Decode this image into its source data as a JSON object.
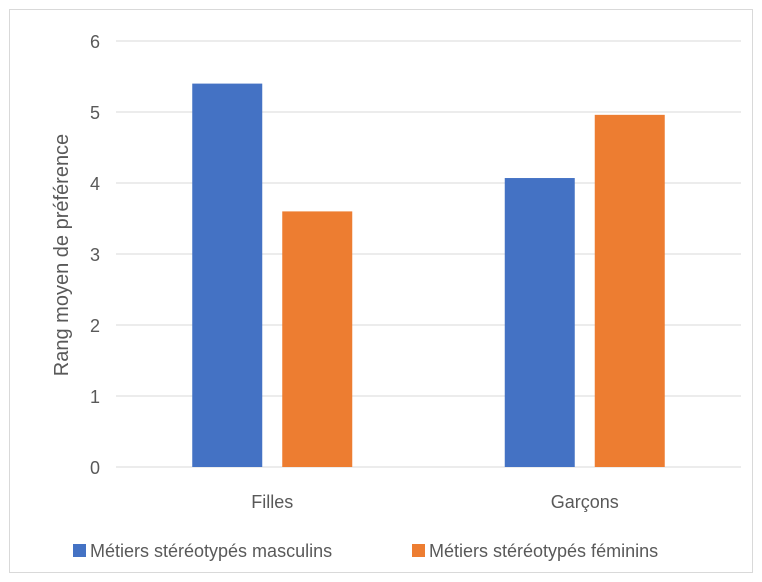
{
  "chart_data": {
    "type": "bar",
    "title": "",
    "xlabel": "",
    "ylabel": "Rang moyen de préférence",
    "categories": [
      "Filles",
      "Garçons"
    ],
    "ylim": [
      0,
      6
    ],
    "yticks": [
      "0",
      "1",
      "2",
      "3",
      "4",
      "5",
      "6"
    ],
    "grid": true,
    "legend_position": "bottom",
    "series": [
      {
        "name": "Métiers stéréotypés masculins",
        "color": "#4472C4",
        "values": [
          5.4,
          4.07
        ]
      },
      {
        "name": "Métiers stéréotypés féminins",
        "color": "#ED7D31",
        "values": [
          3.6,
          4.96
        ]
      }
    ]
  }
}
